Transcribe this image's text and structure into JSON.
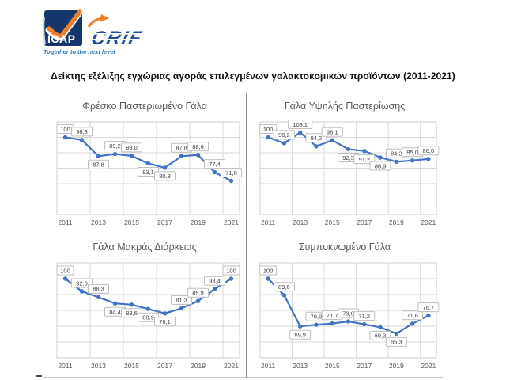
{
  "logo": {
    "icap_text": "ICAP",
    "crif_text": "CRIF",
    "tagline": "Together to the next level",
    "colors": {
      "navy": "#14366F",
      "orange": "#F07E26",
      "crif_blue": "#1D4E96",
      "tagline_blue": "#2E74B5"
    }
  },
  "page_title": "Δείκτης εξέλιξης εγχώριας αγοράς επιλεγμένων γαλακτοκομικών προϊόντων (2011-2021)",
  "chart_style": {
    "line_color": "#4472C4",
    "marker_color": "#4472C4",
    "gridline_color": "#D9D9D9",
    "plot_border_color": "#CFCFCF",
    "label_box_border": "#BFBFBF",
    "label_box_fill": "#FFFFFF",
    "label_text_color": "#404040",
    "axis_text_color": "#595959",
    "title_color": "#595959"
  },
  "chart_data": [
    {
      "type": "line",
      "title": "Φρέσκο Παστεριωμένο Γάλα",
      "x": [
        2011,
        2012,
        2013,
        2014,
        2015,
        2016,
        2017,
        2018,
        2019,
        2020,
        2021
      ],
      "tick_labels": [
        "2011",
        "2013",
        "2015",
        "2017",
        "2019",
        "2021"
      ],
      "values": [
        100,
        98.3,
        87.8,
        89.2,
        88.0,
        83.1,
        80.3,
        87.8,
        88.6,
        77.4,
        71.8
      ],
      "labels": [
        "100",
        "98,3",
        "87,8",
        "89,2",
        "88,0",
        "83,1",
        "80,3",
        "87,8",
        "88,6",
        "77,4",
        "71,8"
      ],
      "label_pos": [
        "a",
        "a",
        "b",
        "a",
        "a",
        "b",
        "b",
        "a",
        "a",
        "a",
        "a"
      ],
      "ylim": [
        50,
        110
      ],
      "y_step": 10,
      "grid": true,
      "legend": "none"
    },
    {
      "type": "line",
      "title": "Γάλα Υψηλής Παστερίωσης",
      "x": [
        2011,
        2012,
        2013,
        2014,
        2015,
        2016,
        2017,
        2018,
        2019,
        2020,
        2021
      ],
      "tick_labels": [
        "2011",
        "2013",
        "2015",
        "2017",
        "2019",
        "2021"
      ],
      "values": [
        100,
        96.2,
        103.1,
        94.2,
        98.1,
        92.3,
        91.2,
        86.9,
        84.2,
        85.0,
        86.0
      ],
      "labels": [
        "100",
        "96,2",
        "103,1",
        "94,2",
        "98,1",
        "92,3",
        "91,2",
        "86,9",
        "84,2",
        "85,0",
        "86,0"
      ],
      "label_pos": [
        "a",
        "a",
        "a",
        "a",
        "a",
        "b",
        "b",
        "b",
        "a",
        "a",
        "a"
      ],
      "ylim": [
        50,
        110
      ],
      "y_step": 10,
      "grid": true,
      "legend": "none"
    },
    {
      "type": "line",
      "title": "Γάλα Μακράς Διάρκειας",
      "x": [
        2011,
        2012,
        2013,
        2014,
        2015,
        2016,
        2017,
        2018,
        2019,
        2020,
        2021
      ],
      "tick_labels": [
        "2011",
        "2013",
        "2015",
        "2017",
        "2019",
        "2021"
      ],
      "values": [
        100,
        92.0,
        88.3,
        84.4,
        83.6,
        80.9,
        78.1,
        81.3,
        85.9,
        93.4,
        100
      ],
      "labels": [
        "100",
        "92,0",
        "88,3",
        "84,4",
        "83,6",
        "80,9",
        "78,1",
        "81,3",
        "85,9",
        "93,4",
        "100"
      ],
      "label_pos": [
        "a",
        "a",
        "a",
        "b",
        "b",
        "b",
        "b",
        "a",
        "a",
        "a",
        "a"
      ],
      "ylim": [
        50,
        110
      ],
      "y_step": 10,
      "grid": true,
      "legend": "none"
    },
    {
      "type": "line",
      "title": "Συμπυκνωμένο Γάλα",
      "x": [
        2011,
        2012,
        2013,
        2014,
        2015,
        2016,
        2017,
        2018,
        2019,
        2020,
        2021
      ],
      "tick_labels": [
        "2011",
        "2013",
        "2015",
        "2017",
        "2019",
        "2021"
      ],
      "values": [
        100,
        89.6,
        69.9,
        70.9,
        71.7,
        73.0,
        71.2,
        69.3,
        65.3,
        71.6,
        76.7
      ],
      "labels": [
        "100",
        "89,6",
        "69,9",
        "70,9",
        "71,7",
        "73,0",
        "71,2",
        "69,3",
        "65,3",
        "71,6",
        "76,7"
      ],
      "label_pos": [
        "a",
        "a",
        "b",
        "a",
        "a",
        "a",
        "a",
        "b",
        "b",
        "a",
        "a"
      ],
      "ylim": [
        50,
        110
      ],
      "y_step": 10,
      "grid": true,
      "legend": "none"
    }
  ]
}
